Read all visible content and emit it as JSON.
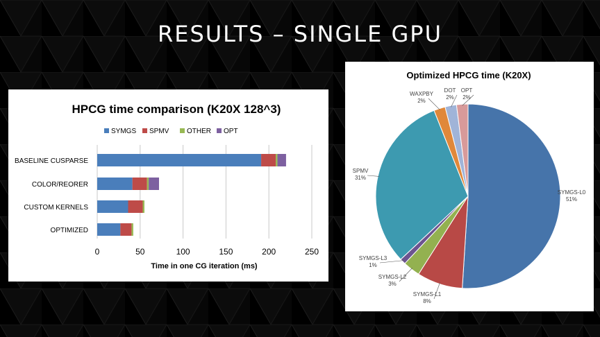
{
  "slide": {
    "title": "RESULTS – SINGLE GPU"
  },
  "colors": {
    "SYMGS": "#4a7ebb",
    "SPMV": "#be4b48",
    "OTHER": "#98b954",
    "OPT": "#7d60a0",
    "pie_symgs_l0": "#4674aa",
    "pie_symgs_l1": "#b84946",
    "pie_symgs_l2": "#93b150",
    "pie_symgs_l3": "#6c5490",
    "pie_spmv": "#3d9ab0",
    "pie_waxpby": "#e0883a",
    "pie_dot": "#a0b4d8",
    "pie_opt": "#d89a9a"
  },
  "chart_data": [
    {
      "type": "bar",
      "orientation": "horizontal",
      "stacked": true,
      "title": "HPCG time comparison (K20X 128^3)",
      "xlabel": "Time in one CG iteration (ms)",
      "ylabel": "",
      "xlim": [
        0,
        250
      ],
      "xticks": [
        0,
        50,
        100,
        150,
        200,
        250
      ],
      "grid": "vertical",
      "legend": "top",
      "categories": [
        "BASELINE CUSPARSE",
        "COLOR/REORER",
        "CUSTOM KERNELS",
        "OPTIMIZED"
      ],
      "series": [
        {
          "name": "SYMGS",
          "values": [
            191,
            41,
            36,
            27
          ]
        },
        {
          "name": "SPMV",
          "values": [
            17,
            17,
            17,
            13
          ]
        },
        {
          "name": "OTHER",
          "values": [
            2,
            2,
            2,
            2
          ]
        },
        {
          "name": "OPT",
          "values": [
            10,
            12,
            0,
            0
          ]
        }
      ]
    },
    {
      "type": "pie",
      "title": "Optimized HPCG time (K20X)",
      "slices": [
        {
          "label": "SYMGS-L0",
          "pct_label": "51%",
          "value": 51
        },
        {
          "label": "SYMGS-L1",
          "pct_label": "8%",
          "value": 8
        },
        {
          "label": "SYMGS-L2",
          "pct_label": "3%",
          "value": 3
        },
        {
          "label": "SYMGS-L3",
          "pct_label": "1%",
          "value": 1
        },
        {
          "label": "SPMV",
          "pct_label": "31%",
          "value": 31
        },
        {
          "label": "WAXPBY",
          "pct_label": "2%",
          "value": 2
        },
        {
          "label": "DOT",
          "pct_label": "2%",
          "value": 2
        },
        {
          "label": "OPT",
          "pct_label": "2%",
          "value": 2
        }
      ]
    }
  ]
}
